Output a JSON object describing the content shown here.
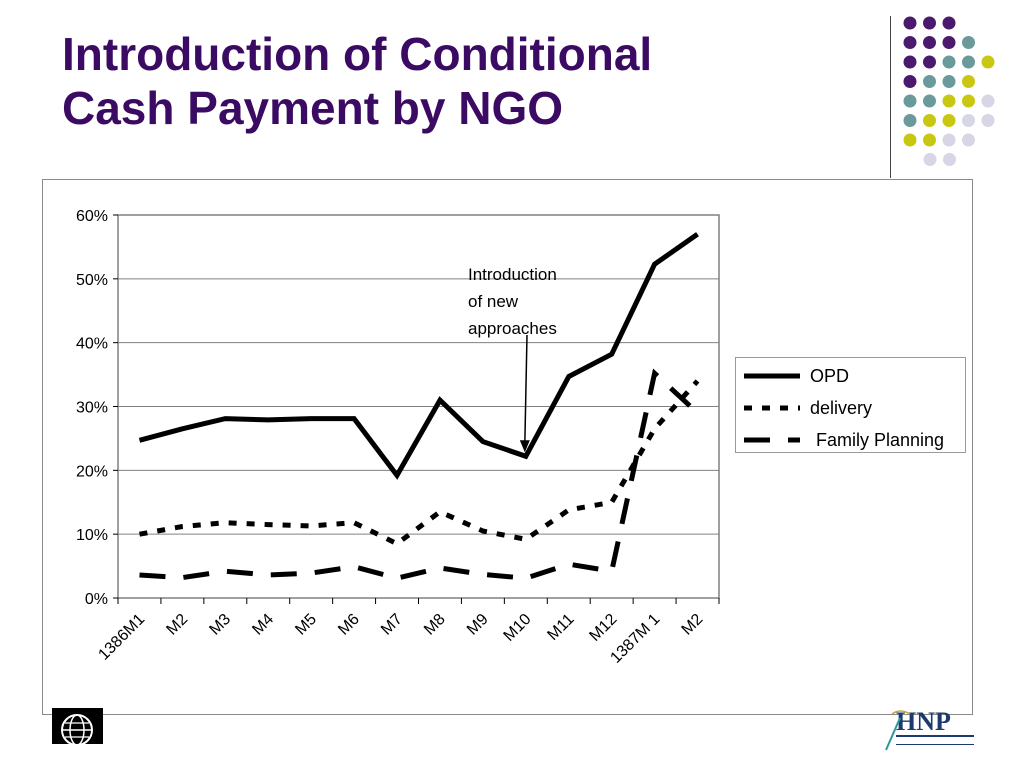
{
  "slide": {
    "title_line1": "Introduction of Conditional",
    "title_line2": "Cash Payment by NGO"
  },
  "colors": {
    "title": "#3b0b63",
    "dot_purple": "#4b1a6e",
    "dot_teal": "#6b9a9a",
    "dot_yellow": "#c8c812",
    "dot_lavender": "#d6d6e6"
  },
  "decor": {
    "dot_rows": [
      [
        "purple",
        "purple",
        "purple"
      ],
      [
        "purple",
        "purple",
        "purple",
        "teal"
      ],
      [
        "purple",
        "purple",
        "teal",
        "teal",
        "yellow"
      ],
      [
        "purple",
        "teal",
        "teal",
        "yellow"
      ],
      [
        "teal",
        "teal",
        "yellow",
        "yellow",
        "lavender"
      ],
      [
        "teal",
        "yellow",
        "yellow",
        "lavender",
        "lavender"
      ],
      [
        "yellow",
        "yellow",
        "lavender",
        "lavender"
      ],
      [
        "lavender",
        "lavender"
      ]
    ],
    "left_logo_icon": "world-bank-globe-icon",
    "right_logo_icon": "hnp-logo-icon"
  },
  "chart_data": {
    "type": "line",
    "title": "",
    "xlabel": "",
    "ylabel": "",
    "ylim": [
      0,
      0.6
    ],
    "yticks": [
      "0%",
      "10%",
      "20%",
      "30%",
      "40%",
      "50%",
      "60%"
    ],
    "categories": [
      "1386M1",
      "M2",
      "M3",
      "M4",
      "M5",
      "M6",
      "M7",
      "M8",
      "M9",
      "M10",
      "M11",
      "M12",
      "1387M 1",
      "M2"
    ],
    "grid": true,
    "legend_position": "right",
    "series": [
      {
        "name": "OPD",
        "style": "solid",
        "values": [
          0.247,
          0.265,
          0.281,
          0.279,
          0.281,
          0.281,
          0.192,
          0.31,
          0.245,
          0.222,
          0.347,
          0.382,
          0.523,
          0.57
        ]
      },
      {
        "name": "delivery",
        "style": "dotted",
        "values": [
          0.1,
          0.112,
          0.118,
          0.115,
          0.113,
          0.118,
          0.085,
          0.135,
          0.105,
          0.092,
          0.138,
          0.15,
          0.265,
          0.34
        ]
      },
      {
        "name": "Family Planning",
        "style": "dashed",
        "values": [
          0.036,
          0.032,
          0.042,
          0.036,
          0.039,
          0.049,
          0.031,
          0.047,
          0.037,
          0.031,
          0.053,
          0.042,
          0.352,
          0.29
        ]
      }
    ],
    "annotation": {
      "lines": [
        "Introduction",
        "of new",
        "approaches"
      ],
      "target_category_index": 9,
      "target_series": "OPD"
    }
  }
}
